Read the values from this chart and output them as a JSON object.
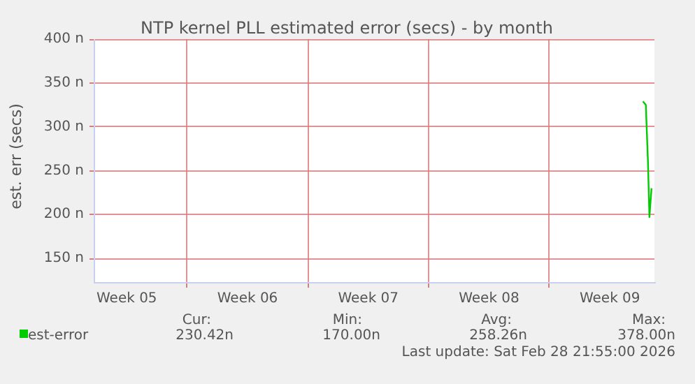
{
  "chart_data": {
    "type": "line",
    "title": "NTP kernel PLL estimated error (secs) - by month",
    "ylabel": "est. err (secs)",
    "x": [
      "2026-02-28T10:00",
      "2026-02-28T14:00",
      "2026-02-28T17:00",
      "2026-02-28T19:00",
      "2026-02-28T21:55"
    ],
    "series": [
      {
        "name": "est-error",
        "color": "#00cc00",
        "values": [
          329,
          325,
          260,
          197,
          230
        ]
      }
    ],
    "xlim": [
      "2026-01-27T14:00",
      "2026-03-01T02:00"
    ],
    "xticks": [
      {
        "value": "2026-01-29T12:00",
        "label": "Week 05"
      },
      {
        "value": "2026-02-05T12:00",
        "label": "Week 06"
      },
      {
        "value": "2026-02-12T12:00",
        "label": "Week 07"
      },
      {
        "value": "2026-02-19T12:00",
        "label": "Week 08"
      },
      {
        "value": "2026-02-26T12:00",
        "label": "Week 09"
      },
      {
        "value": "2026-02-02",
        "label": null
      },
      {
        "value": "2026-02-09",
        "label": null
      },
      {
        "value": "2026-02-16",
        "label": null
      },
      {
        "value": "2026-02-23",
        "label": null
      }
    ],
    "ylim": [
      123,
      400
    ],
    "yticks": [
      {
        "value": 150,
        "label": "150 n"
      },
      {
        "value": 200,
        "label": "200 n"
      },
      {
        "value": 250,
        "label": "250 n"
      },
      {
        "value": 300,
        "label": "300 n"
      },
      {
        "value": 350,
        "label": "350 n"
      },
      {
        "value": 400,
        "label": "400 n"
      }
    ],
    "grid": true,
    "legend": "bottom left",
    "marker": "none",
    "line_style": "solid",
    "annotations": [
      "Cur:",
      "Min:",
      "Avg:",
      "Max:",
      "230.42n",
      "170.00n",
      "258.26n",
      "378.00n",
      "Last update: Sat Feb 28 21:55:00 2026"
    ]
  }
}
